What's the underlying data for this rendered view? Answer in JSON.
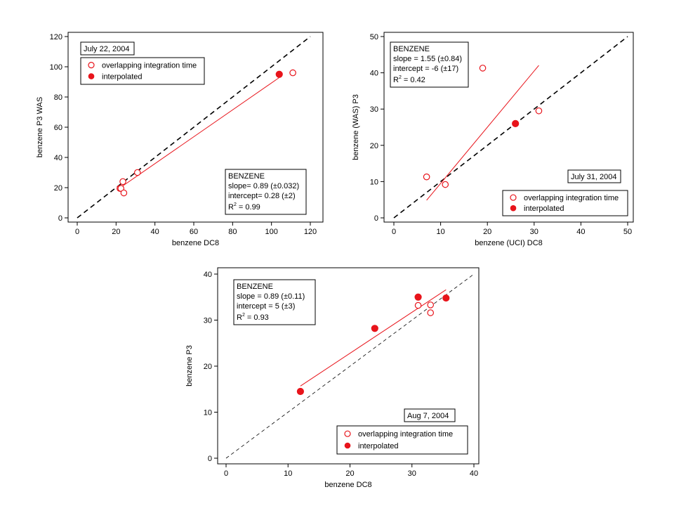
{
  "chart_data": [
    {
      "type": "scatter",
      "xlabel": "benzene DC8",
      "ylabel": "benzene P3 WAS",
      "xlim": [
        0,
        120
      ],
      "ylim": [
        0,
        120
      ],
      "xticks": [
        0,
        20,
        40,
        60,
        80,
        100,
        120
      ],
      "yticks": [
        0,
        20,
        40,
        60,
        80,
        100,
        120
      ],
      "date_label": "July 22, 2004",
      "legend": {
        "open_label": "overlapping integration time",
        "filled_label": "interpolated",
        "position": "top-left"
      },
      "stats": {
        "line1": "BENZENE",
        "line2": "slope= 0.89 (±0.032)",
        "line3": "intercept= 0.28 (±2)",
        "r2_label": "R",
        "r2_sup": "2",
        "r2_value": "= 0.99",
        "position": "bottom-right"
      },
      "one_to_one_line": true,
      "fit_line": {
        "x": [
          23,
          104
        ]
      },
      "series": [
        {
          "marker": "open",
          "x": [
            22,
            22.5,
            23.5,
            24,
            31,
            111
          ],
          "y": [
            19.5,
            19.5,
            24,
            16.5,
            30,
            96
          ]
        },
        {
          "marker": "filled",
          "x": [
            104
          ],
          "y": [
            95
          ]
        }
      ]
    },
    {
      "type": "scatter",
      "xlabel": "benzene (UCI) DC8",
      "ylabel": "benzene (WAS) P3",
      "xlim": [
        0,
        50
      ],
      "ylim": [
        0,
        50
      ],
      "xticks": [
        0,
        10,
        20,
        30,
        40,
        50
      ],
      "yticks": [
        0,
        10,
        20,
        30,
        40,
        50
      ],
      "date_label": "July 31, 2004",
      "legend": {
        "open_label": "overlapping integration time",
        "filled_label": "interpolated",
        "position": "bottom-right"
      },
      "stats": {
        "line1": "BENZENE",
        "line2": "slope = 1.55 (±0.84)",
        "line3": "intercept = -6 (±17)",
        "r2_label": "R",
        "r2_sup": "2",
        "r2_value": "= 0.42",
        "position": "top-left"
      },
      "one_to_one_line": true,
      "fit_line": {
        "x": [
          7,
          31
        ]
      },
      "series": [
        {
          "marker": "open",
          "x": [
            7,
            11,
            19,
            31
          ],
          "y": [
            11.3,
            9.2,
            41.3,
            29.5
          ]
        },
        {
          "marker": "filled",
          "x": [
            26
          ],
          "y": [
            26
          ]
        }
      ]
    },
    {
      "type": "scatter",
      "xlabel": "benzene DC8",
      "ylabel": "benzene P3",
      "xlim": [
        0,
        40
      ],
      "ylim": [
        0,
        40
      ],
      "xticks": [
        0,
        10,
        20,
        30,
        40
      ],
      "yticks": [
        0,
        10,
        20,
        30,
        40
      ],
      "date_label": "Aug 7, 2004",
      "legend": {
        "open_label": "overlapping integration time",
        "filled_label": "interpolated",
        "position": "bottom-right"
      },
      "stats": {
        "line1": "BENZENE",
        "line2": "slope = 0.89 (±0.11)",
        "line3": "intercept = 5 (±3)",
        "r2_label": "R",
        "r2_sup": "2",
        "r2_value": "= 0.93",
        "position": "top-left"
      },
      "one_to_one_line": true,
      "fit_line": {
        "x": [
          12,
          35.5
        ]
      },
      "series": [
        {
          "marker": "open",
          "x": [
            31,
            33,
            33
          ],
          "y": [
            33.2,
            33.3,
            31.6
          ]
        },
        {
          "marker": "filled",
          "x": [
            12,
            24,
            31,
            35.5
          ],
          "y": [
            14.5,
            28.2,
            35,
            34.8
          ]
        }
      ]
    }
  ],
  "colors": {
    "data": "#e8141b",
    "axis": "#000000",
    "background": "#ffffff"
  }
}
